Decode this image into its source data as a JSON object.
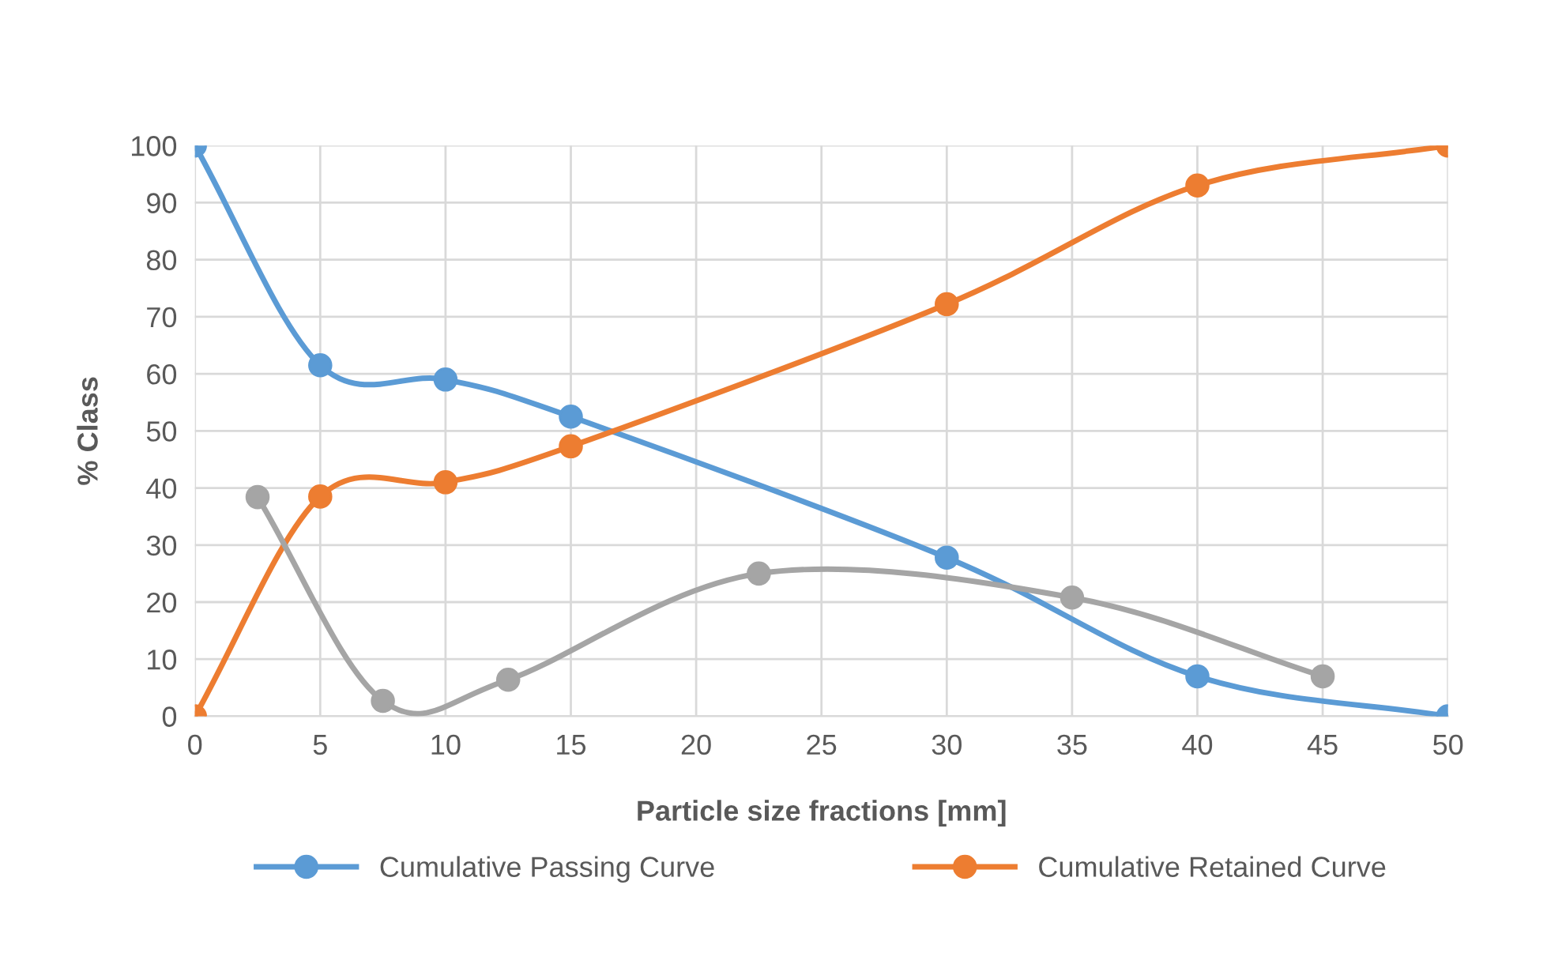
{
  "chart_data": {
    "type": "line",
    "xlabel": "Particle size fractions [mm]",
    "ylabel": "% Class",
    "xlim": [
      0,
      50
    ],
    "xticks": [
      0,
      5,
      10,
      15,
      20,
      25,
      30,
      35,
      40,
      45,
      50
    ],
    "ylim": [
      0,
      100
    ],
    "yticks": [
      0,
      10,
      20,
      30,
      40,
      50,
      60,
      70,
      80,
      90,
      100
    ],
    "grid": true,
    "legend": "bottom",
    "marker": "circle",
    "line_style": "solid",
    "series": [
      {
        "name": "Cumulative Passing Curve",
        "color": "#5b9bd5",
        "x": [
          0,
          5,
          10,
          15,
          30,
          40,
          50
        ],
        "values": [
          100,
          61.5,
          59,
          52.5,
          27.8,
          7,
          0
        ]
      },
      {
        "name": "Cumulative Retained Curve",
        "color": "#ed7d31",
        "x": [
          0,
          5,
          10,
          15,
          30,
          40,
          50
        ],
        "values": [
          0,
          38.5,
          41,
          47.3,
          72.2,
          93,
          100
        ]
      },
      {
        "color": "#a5a5a5",
        "x": [
          2.5,
          7.5,
          12.5,
          22.5,
          35,
          45
        ],
        "values": [
          38.4,
          2.7,
          6.4,
          25,
          20.8,
          7
        ]
      }
    ]
  }
}
